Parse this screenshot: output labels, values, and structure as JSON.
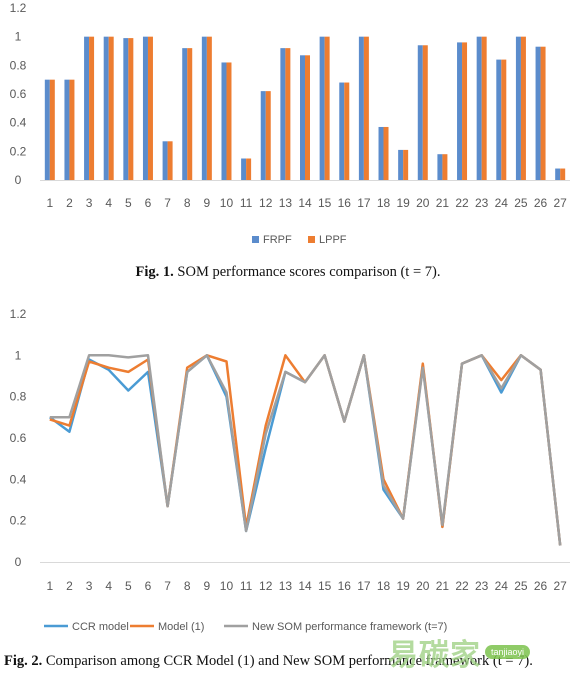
{
  "chart_data": [
    {
      "type": "bar",
      "categories": [
        "1",
        "2",
        "3",
        "4",
        "5",
        "6",
        "7",
        "8",
        "9",
        "10",
        "11",
        "12",
        "13",
        "14",
        "15",
        "16",
        "17",
        "18",
        "19",
        "20",
        "21",
        "22",
        "23",
        "24",
        "25",
        "26",
        "27"
      ],
      "series": [
        {
          "name": "FRPF",
          "color": "#5b8ccc",
          "values": [
            0.7,
            0.7,
            1.0,
            1.0,
            0.99,
            1.0,
            0.27,
            0.92,
            1.0,
            0.82,
            0.15,
            0.62,
            0.92,
            0.87,
            1.0,
            0.68,
            1.0,
            0.37,
            0.21,
            0.94,
            0.18,
            0.96,
            1.0,
            0.84,
            1.0,
            0.93,
            0.08
          ]
        },
        {
          "name": "LPPF",
          "color": "#ed7d31",
          "values": [
            0.7,
            0.7,
            1.0,
            1.0,
            0.99,
            1.0,
            0.27,
            0.92,
            1.0,
            0.82,
            0.15,
            0.62,
            0.92,
            0.87,
            1.0,
            0.68,
            1.0,
            0.37,
            0.21,
            0.94,
            0.18,
            0.96,
            1.0,
            0.84,
            1.0,
            0.93,
            0.08
          ]
        }
      ],
      "yticks": [
        "0",
        "0.2",
        "0.4",
        "0.6",
        "0.8",
        "1",
        "1.2"
      ],
      "ylim": [
        0,
        1.2
      ],
      "grid": false,
      "legend_position": "bottom"
    },
    {
      "type": "line",
      "categories": [
        "1",
        "2",
        "3",
        "4",
        "5",
        "6",
        "7",
        "8",
        "9",
        "10",
        "11",
        "12",
        "13",
        "14",
        "15",
        "16",
        "17",
        "18",
        "19",
        "20",
        "21",
        "22",
        "23",
        "24",
        "25",
        "26",
        "27"
      ],
      "series": [
        {
          "name": "CCR model",
          "color": "#4a9bd4",
          "values": [
            0.7,
            0.63,
            0.98,
            0.93,
            0.83,
            0.92,
            0.27,
            0.92,
            1.0,
            0.8,
            0.15,
            0.55,
            0.92,
            0.87,
            1.0,
            0.68,
            1.0,
            0.35,
            0.21,
            0.95,
            0.17,
            0.96,
            1.0,
            0.82,
            1.0,
            0.93,
            0.08
          ]
        },
        {
          "name": "Model (1)",
          "color": "#ed7d31",
          "values": [
            0.69,
            0.66,
            0.97,
            0.94,
            0.92,
            0.98,
            0.27,
            0.94,
            1.0,
            0.97,
            0.17,
            0.66,
            1.0,
            0.87,
            1.0,
            0.68,
            1.0,
            0.4,
            0.21,
            0.96,
            0.17,
            0.96,
            1.0,
            0.88,
            1.0,
            0.93,
            0.08
          ]
        },
        {
          "name": "New SOM performance framework (t=7)",
          "color": "#a0a0a0",
          "values": [
            0.7,
            0.7,
            1.0,
            1.0,
            0.99,
            1.0,
            0.27,
            0.92,
            1.0,
            0.82,
            0.15,
            0.62,
            0.92,
            0.87,
            1.0,
            0.68,
            1.0,
            0.37,
            0.21,
            0.94,
            0.18,
            0.96,
            1.0,
            0.84,
            1.0,
            0.93,
            0.08
          ]
        }
      ],
      "yticks": [
        "0",
        "0.2",
        "0.4",
        "0.6",
        "0.8",
        "1",
        "1.2"
      ],
      "ylim": [
        0,
        1.2
      ],
      "grid": false,
      "legend_position": "bottom"
    }
  ],
  "captions": {
    "fig1_label": "Fig. 1.",
    "fig1_text": " SOM performance scores comparison (t = 7).",
    "fig2_label": "Fig. 2.",
    "fig2_text": " Comparison among CCR Model (1) and New SOM performance framework (t = 7)."
  },
  "watermark": {
    "text": "易碳家",
    "pill": "tanjiaoyi"
  }
}
